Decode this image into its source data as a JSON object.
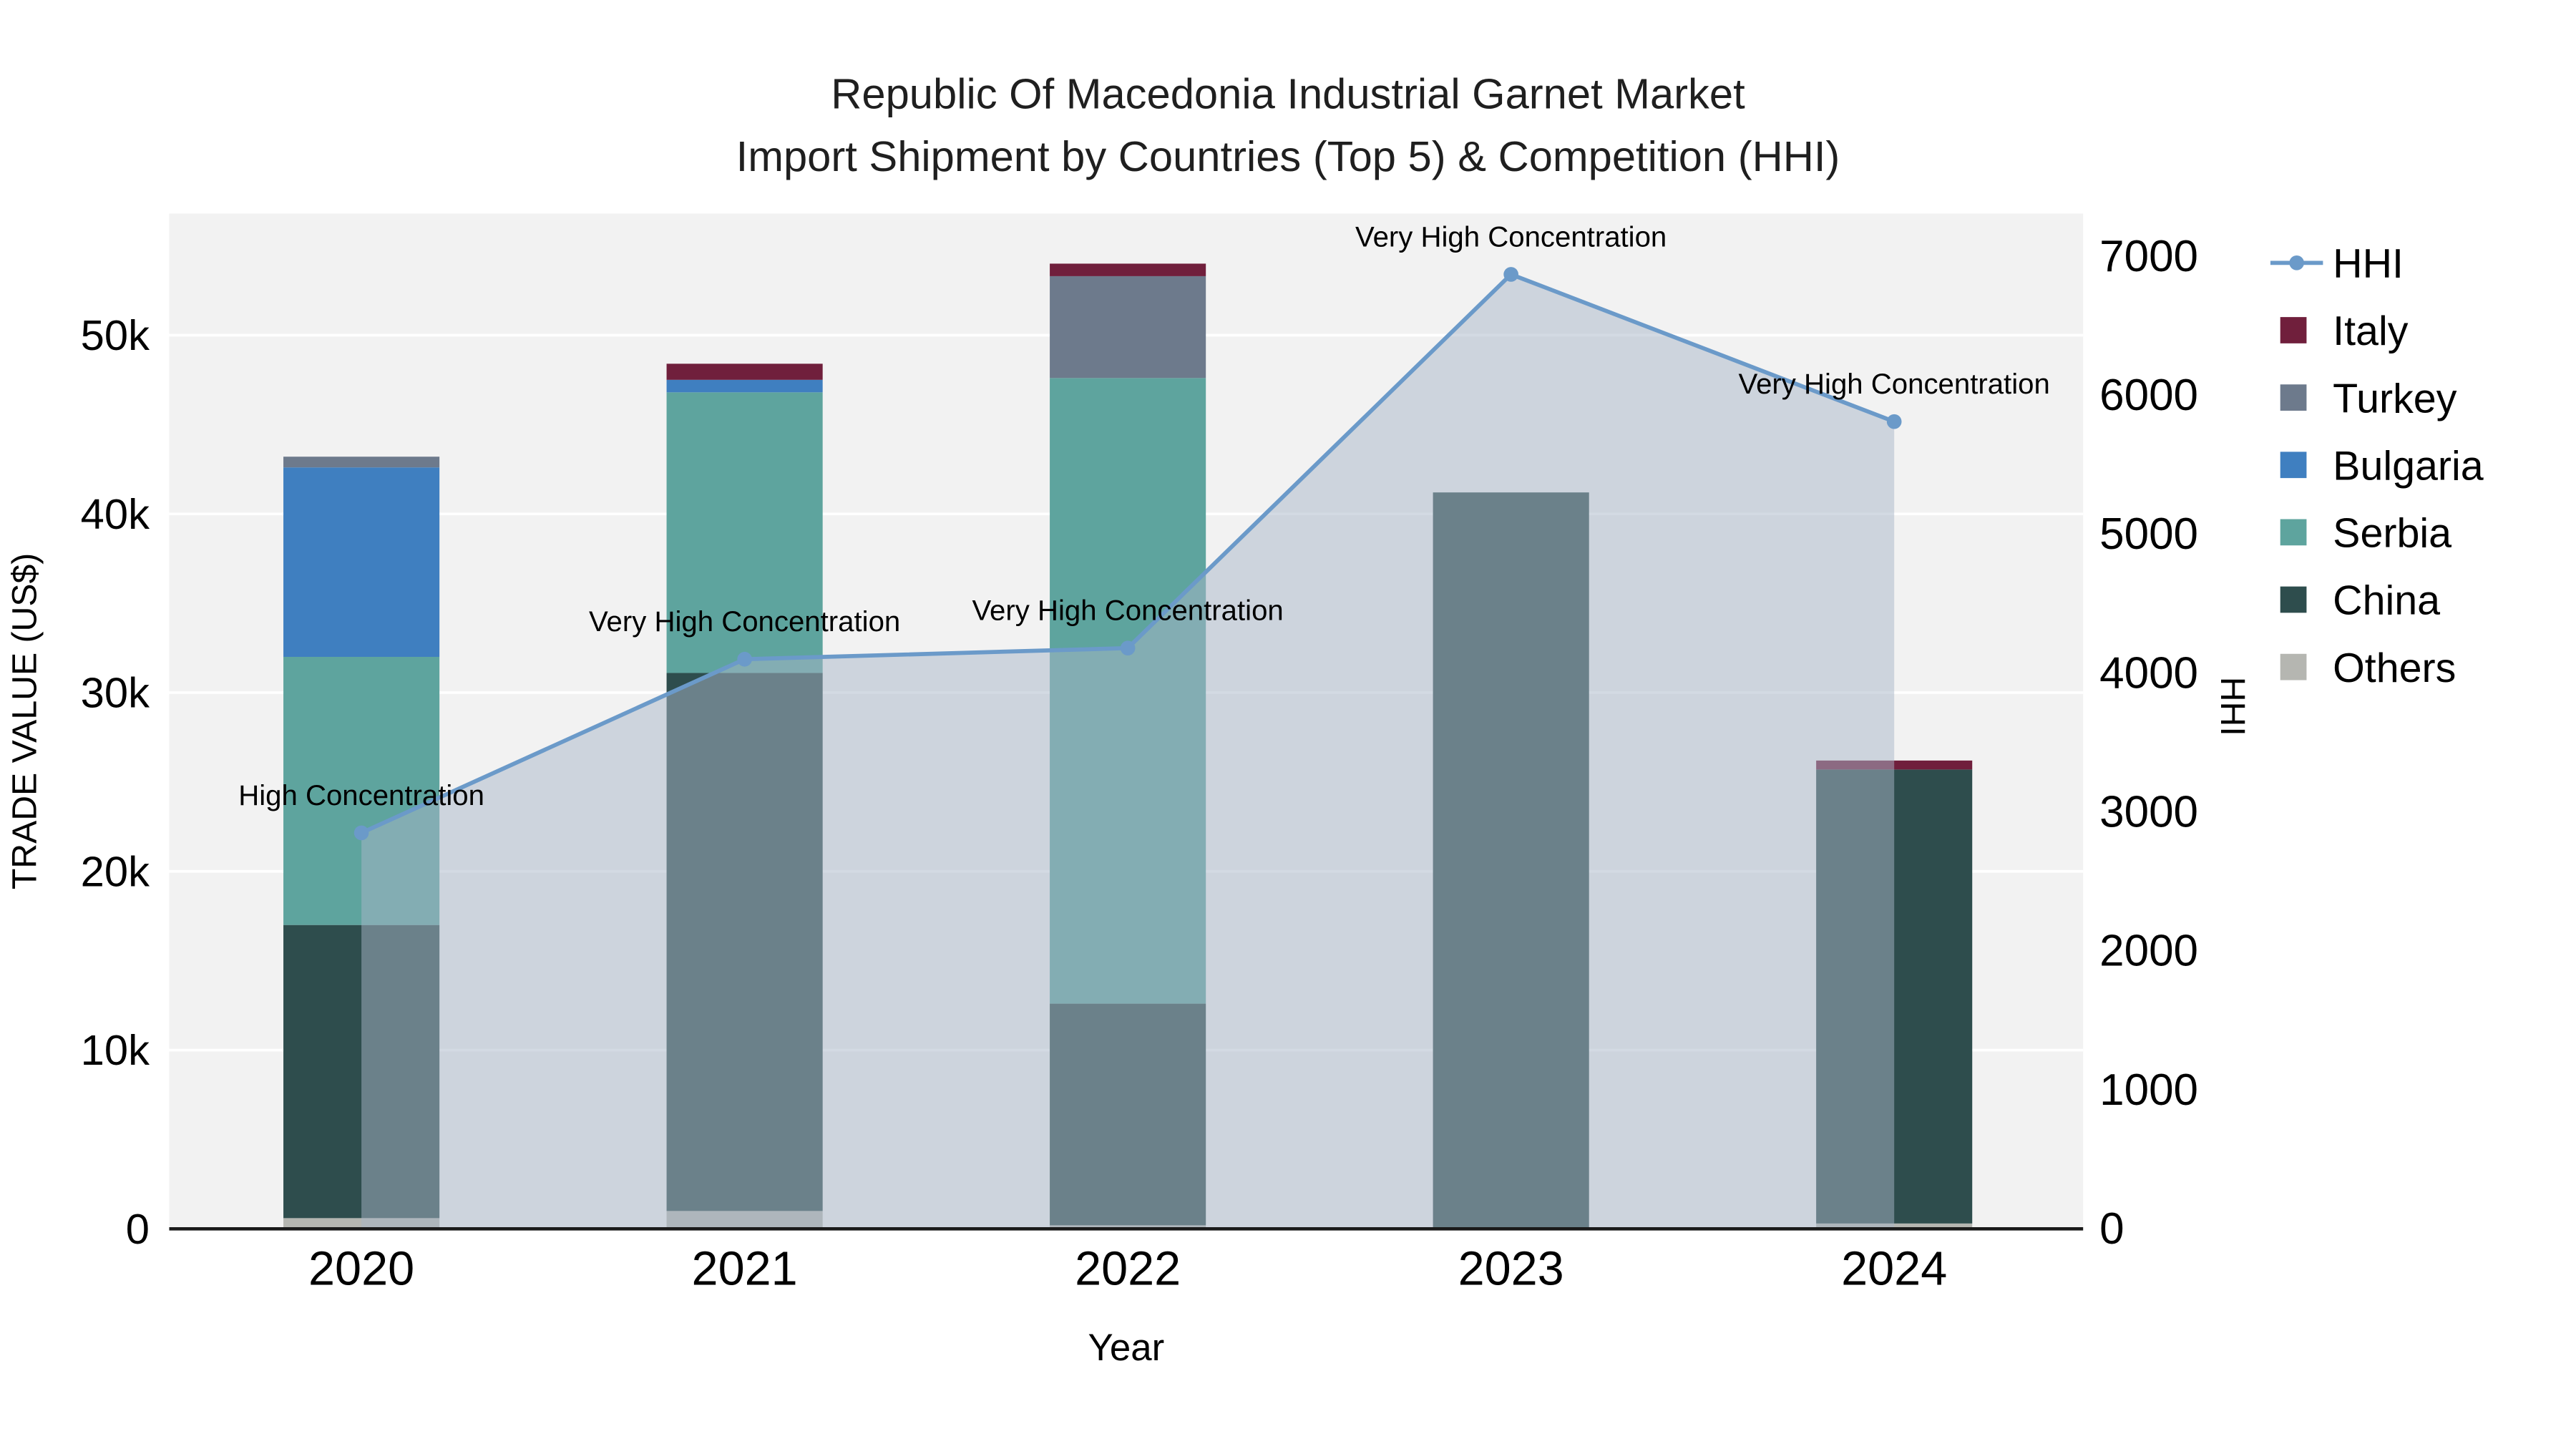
{
  "title": {
    "line1": "Republic Of Macedonia Industrial Garnet Market",
    "line2": "Import Shipment by Countries (Top 5) & Competition (HHI)"
  },
  "chart_data": {
    "type": "bar+line",
    "x_categories": [
      "2020",
      "2021",
      "2022",
      "2023",
      "2024"
    ],
    "xlabel": "Year",
    "ylabel_left": "TRADE VALUE (US$)",
    "ylabel_right": "HHI",
    "ytick_labels_left": [
      "0",
      "10k",
      "20k",
      "30k",
      "40k",
      "50k"
    ],
    "ytick_values_left": [
      0,
      10000,
      20000,
      30000,
      40000,
      50000
    ],
    "ylim_left": [
      0,
      56800
    ],
    "ytick_values_right": [
      0,
      1000,
      2000,
      3000,
      4000,
      5000,
      6000,
      7000
    ],
    "ylim_right": [
      0,
      7000
    ],
    "grid": true,
    "legend_position": "right",
    "plot_bg": "#f2f2f2",
    "bar_series": [
      {
        "name": "Others",
        "color": "#b5b6b1",
        "values": [
          600,
          1000,
          200,
          0,
          300
        ]
      },
      {
        "name": "China",
        "color": "#2e4d4d",
        "values": [
          16400,
          30100,
          12400,
          41200,
          25400
        ]
      },
      {
        "name": "Serbia",
        "color": "#5ea49e",
        "values": [
          15000,
          15700,
          35000,
          0,
          0
        ]
      },
      {
        "name": "Bulgaria",
        "color": "#3f7fc0",
        "values": [
          10600,
          700,
          0,
          0,
          0
        ]
      },
      {
        "name": "Turkey",
        "color": "#6d7a8c",
        "values": [
          600,
          0,
          5700,
          0,
          0
        ]
      },
      {
        "name": "Italy",
        "color": "#701f3c",
        "values": [
          0,
          900,
          700,
          0,
          500
        ]
      }
    ],
    "line_series": {
      "name": "HHI",
      "color": "#6b9ac9",
      "fill_color": "rgba(168,182,200,0.5)",
      "values": [
        2850,
        4100,
        4180,
        6870,
        5810
      ]
    },
    "annotations": [
      "High Concentration",
      "Very High Concentration",
      "Very High Concentration",
      "Very High Concentration",
      "Very High Concentration"
    ],
    "legend": [
      "HHI",
      "Italy",
      "Turkey",
      "Bulgaria",
      "Serbia",
      "China",
      "Others"
    ]
  }
}
